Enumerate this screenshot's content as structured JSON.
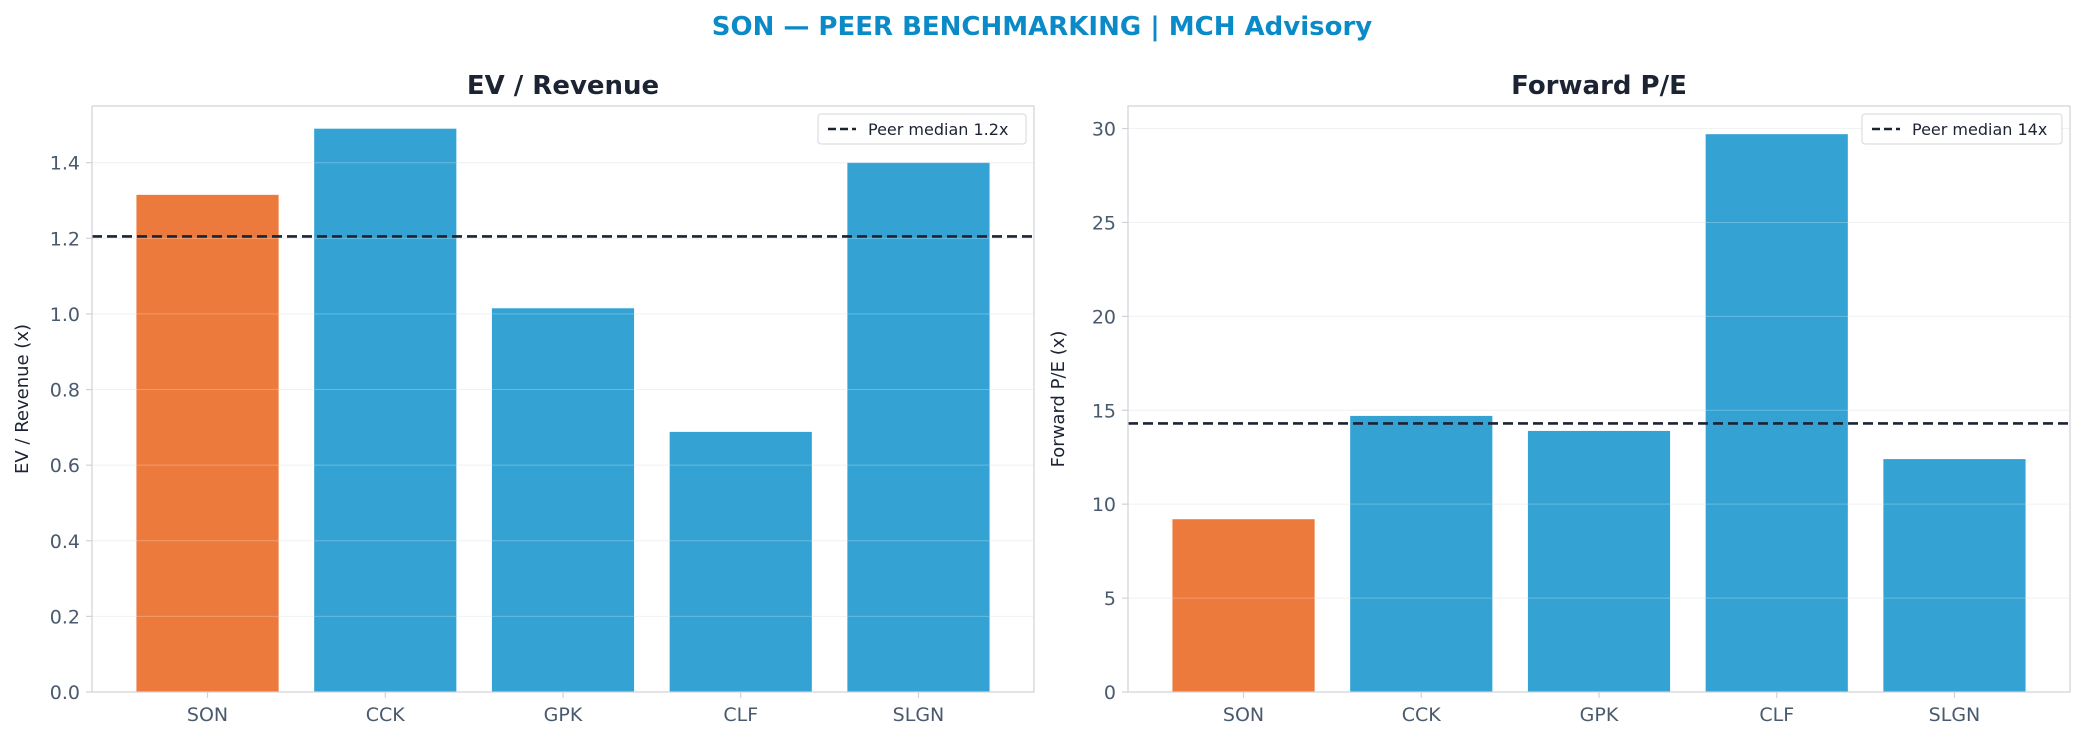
{
  "suptitle": "SON — PEER BENCHMARKING | MCH Advisory",
  "colors": {
    "title": "#0a8ac6",
    "subject": "#ed7a3d",
    "peer": "#34a3d4",
    "median_line": "#1c2333",
    "axis_text": "#4a5a6e",
    "spine": "#cfd3d8",
    "grid": "#eceef1"
  },
  "chart_data": [
    {
      "type": "bar",
      "title": "EV / Revenue",
      "ylabel": "EV / Revenue (x)",
      "categories": [
        "SON",
        "CCK",
        "GPK",
        "CLF",
        "SLGN"
      ],
      "values": [
        1.315,
        1.49,
        1.015,
        0.688,
        1.4
      ],
      "highlight": "SON",
      "ylim": [
        0,
        1.55
      ],
      "yticks": [
        0.0,
        0.2,
        0.4,
        0.6,
        0.8,
        1.0,
        1.2,
        1.4
      ],
      "ytick_labels": [
        "0.0",
        "0.2",
        "0.4",
        "0.6",
        "0.8",
        "1.0",
        "1.2",
        "1.4"
      ],
      "reference_line": {
        "value": 1.205,
        "label": "Peer median 1.2x",
        "style": "dashed"
      },
      "legend": "top-right",
      "grid": true
    },
    {
      "type": "bar",
      "title": "Forward P/E",
      "ylabel": "Forward P/E (x)",
      "categories": [
        "SON",
        "CCK",
        "GPK",
        "CLF",
        "SLGN"
      ],
      "values": [
        9.2,
        14.7,
        13.9,
        29.7,
        12.4
      ],
      "highlight": "SON",
      "ylim": [
        0,
        31.2
      ],
      "yticks": [
        0,
        5,
        10,
        15,
        20,
        25,
        30
      ],
      "ytick_labels": [
        "0",
        "5",
        "10",
        "15",
        "20",
        "25",
        "30"
      ],
      "reference_line": {
        "value": 14.3,
        "label": "Peer median 14x",
        "style": "dashed"
      },
      "legend": "top-right",
      "grid": true
    }
  ]
}
